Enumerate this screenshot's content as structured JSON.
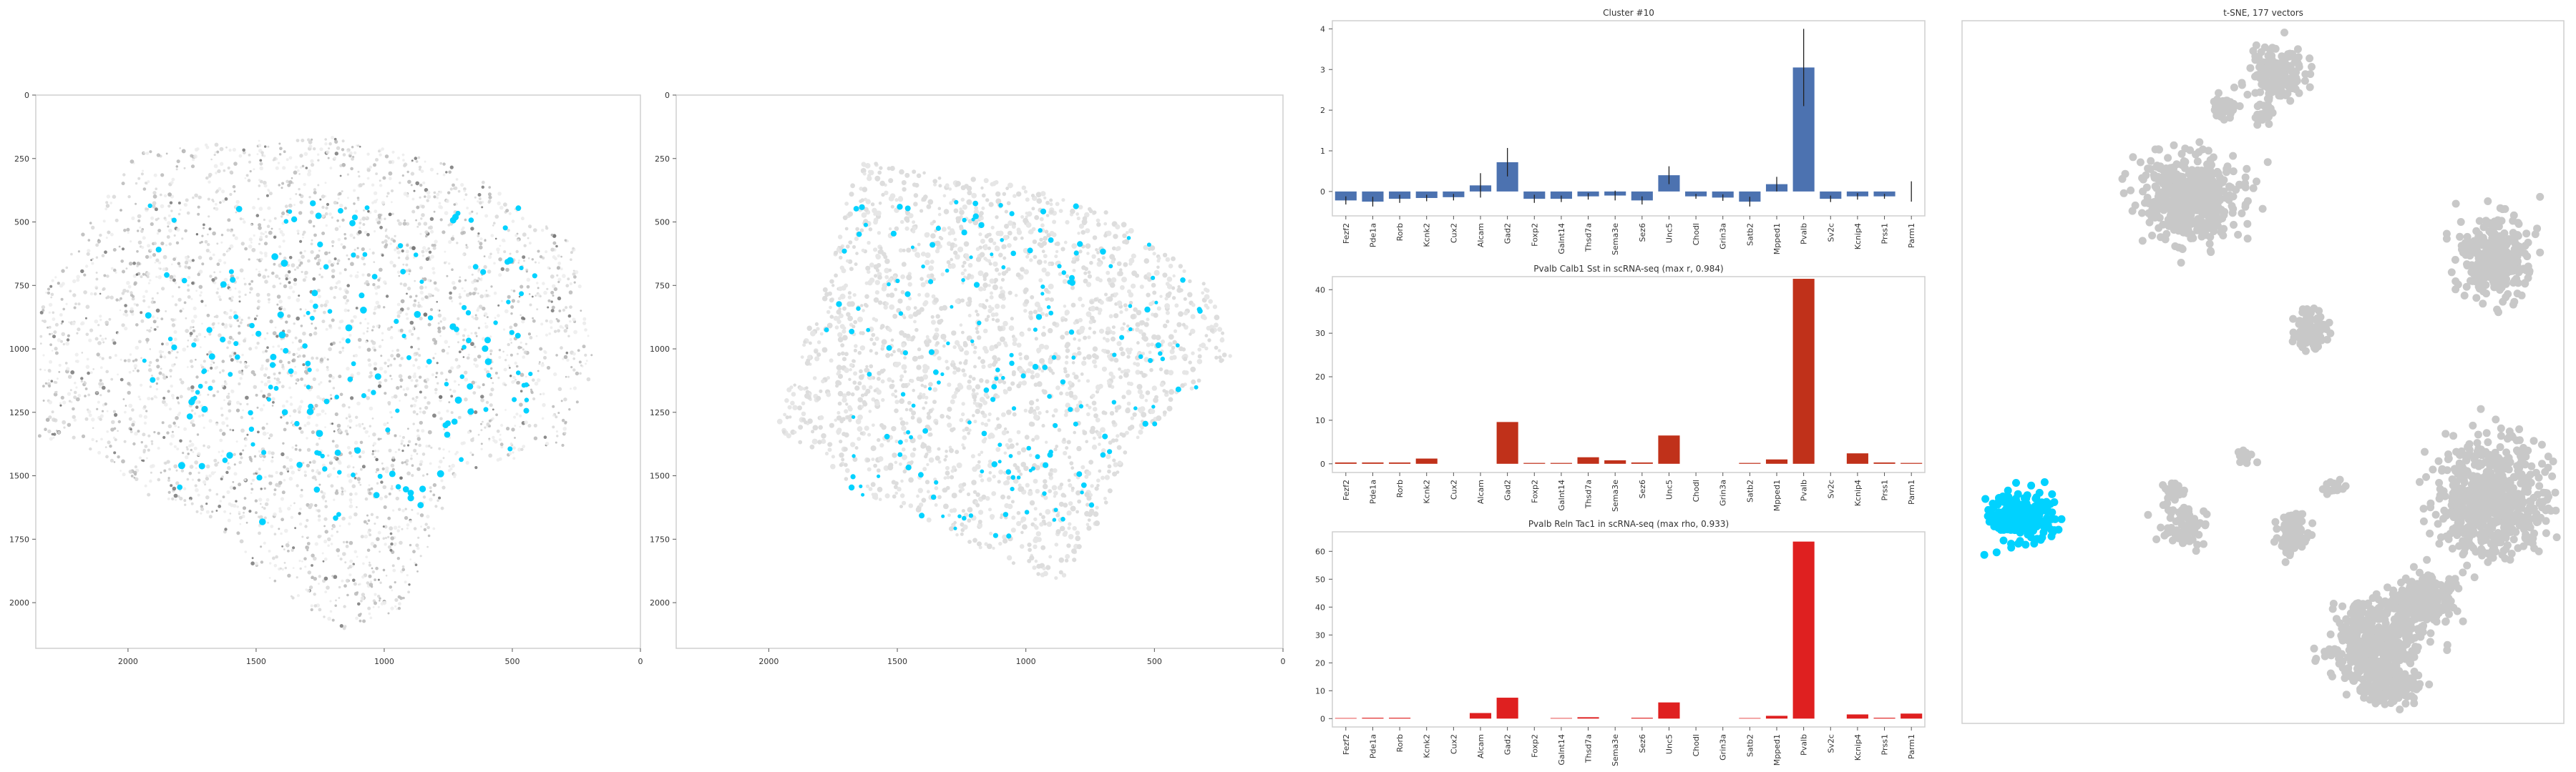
{
  "colors": {
    "highlight": "#00d2ff",
    "blue_bar": "#4c72b0",
    "darkred_bar": "#c0311a",
    "red_bar": "#df2020",
    "cell_gray": "#c8c8c8"
  },
  "spatial_panels": {
    "x_ticks": [
      "2000",
      "1500",
      "1000",
      "500",
      "0"
    ],
    "y_ticks": [
      "0",
      "250",
      "500",
      "750",
      "1000",
      "1250",
      "1500",
      "1750",
      "2000"
    ]
  },
  "chart_data": [
    {
      "type": "bar",
      "title": "Cluster #10",
      "categories": [
        "Fezf2",
        "Pde1a",
        "Rorb",
        "Kcnk2",
        "Cux2",
        "Alcam",
        "Gad2",
        "Foxp2",
        "Galnt14",
        "Thsd7a",
        "Sema3e",
        "Sez6",
        "Unc5",
        "Chodl",
        "Grin3a",
        "Satb2",
        "Mpped1",
        "Pvalb",
        "Sv2c",
        "Kcnip4",
        "Prss1",
        "Parm1"
      ],
      "values": [
        -0.22,
        -0.25,
        -0.18,
        -0.16,
        -0.14,
        0.15,
        0.72,
        -0.18,
        -0.18,
        -0.12,
        -0.1,
        -0.22,
        0.4,
        -0.12,
        -0.15,
        -0.25,
        0.18,
        3.05,
        -0.18,
        -0.12,
        -0.12,
        0.0
      ],
      "errors": [
        0.1,
        0.12,
        0.1,
        0.08,
        0.08,
        0.3,
        0.35,
        0.1,
        0.08,
        0.08,
        0.12,
        0.1,
        0.22,
        0.06,
        0.08,
        0.12,
        0.18,
        0.95,
        0.08,
        0.08,
        0.06,
        0.25
      ],
      "ylim": [
        -0.6,
        4.2
      ],
      "yticks": [
        "0",
        "1",
        "2",
        "3",
        "4"
      ],
      "series": [
        {
          "color": "#4c72b0"
        }
      ]
    },
    {
      "type": "bar",
      "title": "Pvalb Calb1 Sst in scRNA-seq (max r, 0.984)",
      "categories": [
        "Fezf2",
        "Pde1a",
        "Rorb",
        "Kcnk2",
        "Cux2",
        "Alcam",
        "Gad2",
        "Foxp2",
        "Galnt14",
        "Thsd7a",
        "Sema3e",
        "Sez6",
        "Unc5",
        "Chodl",
        "Grin3a",
        "Satb2",
        "Mpped1",
        "Pvalb",
        "Sv2c",
        "Kcnip4",
        "Prss1",
        "Parm1"
      ],
      "values": [
        0.3,
        0.3,
        0.3,
        1.2,
        0,
        0,
        9.6,
        0.2,
        0.2,
        1.5,
        0.8,
        0.3,
        6.5,
        0,
        0,
        0.2,
        1.0,
        42.5,
        0,
        2.4,
        0.3,
        0.2
      ],
      "ylim": [
        -2,
        43
      ],
      "yticks": [
        "0",
        "10",
        "20",
        "30",
        "40"
      ]
    },
    {
      "type": "bar",
      "title": "Pvalb Reln Tac1 in scRNA-seq (max rho, 0.933)",
      "categories": [
        "Fezf2",
        "Pde1a",
        "Rorb",
        "Kcnk2",
        "Cux2",
        "Alcam",
        "Gad2",
        "Foxp2",
        "Galnt14",
        "Thsd7a",
        "Sema3e",
        "Sez6",
        "Unc5",
        "Chodl",
        "Grin3a",
        "Satb2",
        "Mpped1",
        "Pvalb",
        "Sv2c",
        "Kcnip4",
        "Prss1",
        "Parm1"
      ],
      "values": [
        0.2,
        0.3,
        0.3,
        0,
        0,
        2.0,
        7.5,
        0,
        0.2,
        0.5,
        0,
        0.3,
        5.8,
        0,
        0,
        0.2,
        1.0,
        63.5,
        0,
        1.5,
        0.3,
        1.8
      ],
      "ylim": [
        -3,
        67
      ],
      "yticks": [
        "0",
        "10",
        "20",
        "30",
        "40",
        "50",
        "60"
      ]
    },
    {
      "type": "scatter",
      "title": "t-SNE, 177 vectors"
    }
  ]
}
